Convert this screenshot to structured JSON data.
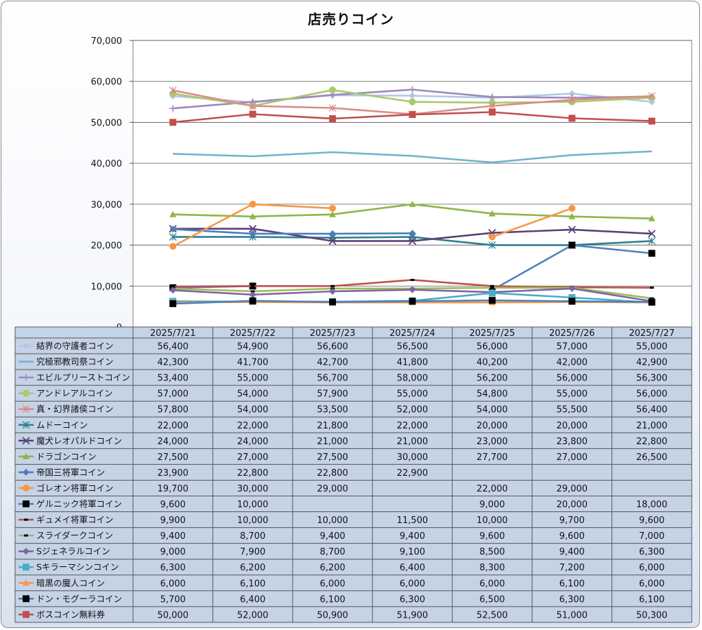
{
  "chart_data": {
    "type": "line",
    "title": "店売りコイン",
    "xlabel": "",
    "ylabel": "",
    "ylim": [
      0,
      70000
    ],
    "yticks": [
      0,
      10000,
      20000,
      30000,
      40000,
      50000,
      60000,
      70000
    ],
    "ytick_labels": [
      "0",
      "10,000",
      "20,000",
      "30,000",
      "40,000",
      "50,000",
      "60,000",
      "70,000"
    ],
    "grid": true,
    "legend": "data-table",
    "categories": [
      "2025/7/21",
      "2025/7/22",
      "2025/7/23",
      "2025/7/24",
      "2025/7/25",
      "2025/7/26",
      "2025/7/27"
    ],
    "series": [
      {
        "name": "結界の守護者コイン",
        "color": "#b4c7e7",
        "marker": "diamond",
        "values": [
          56400,
          54900,
          56600,
          56500,
          56000,
          57000,
          55000
        ]
      },
      {
        "name": "究極邪教司祭コイン",
        "color": "#6fb5cc",
        "marker": "none",
        "values": [
          42300,
          41700,
          42700,
          41800,
          40200,
          42000,
          42900
        ]
      },
      {
        "name": "エビルプリーストコイン",
        "color": "#9c88bc",
        "marker": "plus",
        "values": [
          53400,
          55000,
          56700,
          58000,
          56200,
          56000,
          56300
        ]
      },
      {
        "name": "アンドレアルコイン",
        "color": "#a9c96a",
        "marker": "circle",
        "values": [
          57000,
          54000,
          57900,
          55000,
          54800,
          55000,
          56000
        ]
      },
      {
        "name": "真・幻界諸侯コイン",
        "color": "#d98c89",
        "marker": "star",
        "values": [
          57800,
          54000,
          53500,
          52000,
          54000,
          55500,
          56400
        ]
      },
      {
        "name": "ムドーコイン",
        "color": "#2e7f91",
        "marker": "star",
        "values": [
          22000,
          22000,
          21800,
          22000,
          20000,
          20000,
          21000
        ]
      },
      {
        "name": "魔犬レオパルドコイン",
        "color": "#5b3f78",
        "marker": "x",
        "values": [
          24000,
          24000,
          21000,
          21000,
          23000,
          23800,
          22800
        ]
      },
      {
        "name": "ドラゴンコイン",
        "color": "#8fb547",
        "marker": "triangle",
        "values": [
          27500,
          27000,
          27500,
          30000,
          27700,
          27000,
          26500
        ]
      },
      {
        "name": "帝国三将軍コイン",
        "color": "#4a7ebb",
        "marker": "diamond",
        "values": [
          23900,
          22800,
          22800,
          22900,
          null,
          null,
          null
        ]
      },
      {
        "name": "ゴレオン将軍コイン",
        "color": "#f79646",
        "marker": "circle",
        "values": [
          19700,
          30000,
          29000,
          null,
          22000,
          29000,
          null
        ]
      },
      {
        "name": "ゲルニック将軍コイン",
        "color": "#4f81bd",
        "marker": "square-black",
        "values": [
          9600,
          10000,
          null,
          null,
          9000,
          20000,
          18000
        ]
      },
      {
        "name": "ギュメイ将軍コイン",
        "color": "#c0504d",
        "marker": "dash",
        "values": [
          9900,
          10000,
          10000,
          11500,
          10000,
          9700,
          9600
        ]
      },
      {
        "name": "スライダークコイン",
        "color": "#9bbb59",
        "marker": "dash",
        "values": [
          9400,
          8700,
          9400,
          9400,
          9600,
          9600,
          7000
        ]
      },
      {
        "name": "Sジェネラルコイン",
        "color": "#8064a2",
        "marker": "diamond",
        "values": [
          9000,
          7900,
          8700,
          9100,
          8500,
          9400,
          6300
        ]
      },
      {
        "name": "Sキラーマシンコイン",
        "color": "#4bacc6",
        "marker": "square",
        "values": [
          6300,
          6200,
          6200,
          6400,
          8300,
          7200,
          6000
        ]
      },
      {
        "name": "暗黒の魔人コイン",
        "color": "#f79646",
        "marker": "triangle",
        "values": [
          6000,
          6100,
          6000,
          6000,
          6000,
          6100,
          6000
        ]
      },
      {
        "name": "ドン・モグーラコイン",
        "color": "#4f81bd",
        "marker": "square-black",
        "values": [
          5700,
          6400,
          6100,
          6300,
          6500,
          6300,
          6100
        ]
      },
      {
        "name": "ボスコイン無料券",
        "color": "#c0504d",
        "marker": "square",
        "values": [
          50000,
          52000,
          50900,
          51900,
          52500,
          51000,
          50300
        ]
      }
    ]
  }
}
